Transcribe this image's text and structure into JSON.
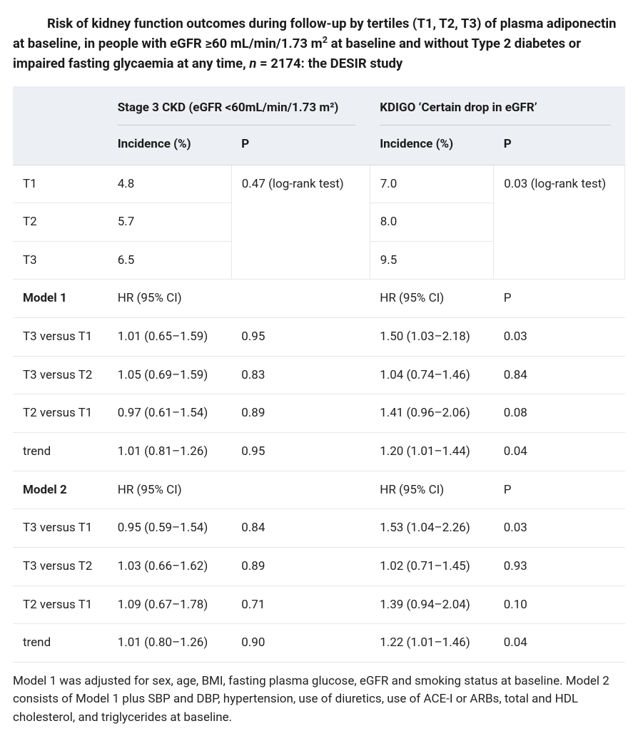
{
  "title_html": "Risk of kidney function outcomes during follow-up by tertiles (T1, T2, T3) of plasma adiponectin at baseline, in people with eGFR ≥60 mL/min/1.73 m<sup>2</sup> at baseline and without Type 2 diabetes or impaired fasting glycaemia at any time, <em>n</em> = 2174: the DESIR study",
  "header": {
    "group1": "Stage 3 CKD (eGFR <60mL/min/1.73 m²)",
    "group2": "KDIGO ‘Certain drop in eGFR’",
    "sub_incidence": "Incidence (%)",
    "sub_p": "P"
  },
  "incidence": {
    "rows": [
      "T1",
      "T2",
      "T3"
    ],
    "ckd": [
      "4.8",
      "5.7",
      "6.5"
    ],
    "ckd_p": "0.47 (log-rank test)",
    "kdigo": [
      "7.0",
      "8.0",
      "9.5"
    ],
    "kdigo_p": "0.03 (log-rank test)"
  },
  "model1": {
    "label": "Model 1",
    "hr_label": "HR (95% CI)",
    "p_label": "P",
    "rows": [
      {
        "name": "T3 versus T1",
        "ckd_hr": "1.01 (0.65–1.59)",
        "ckd_p": "0.95",
        "kd_hr": "1.50 (1.03–2.18)",
        "kd_p": "0.03"
      },
      {
        "name": "T3 versus T2",
        "ckd_hr": "1.05 (0.69–1.59)",
        "ckd_p": "0.83",
        "kd_hr": "1.04 (0.74–1.46)",
        "kd_p": "0.84"
      },
      {
        "name": "T2 versus T1",
        "ckd_hr": "0.97 (0.61–1.54)",
        "ckd_p": "0.89",
        "kd_hr": "1.41 (0.96–2.06)",
        "kd_p": "0.08"
      },
      {
        "name": "trend",
        "ckd_hr": "1.01 (0.81–1.26)",
        "ckd_p": "0.95",
        "kd_hr": "1.20 (1.01–1.44)",
        "kd_p": "0.04"
      }
    ]
  },
  "model2": {
    "label": "Model 2",
    "hr_label": "HR (95% CI)",
    "p_label": "P",
    "rows": [
      {
        "name": "T3 versus T1",
        "ckd_hr": "0.95 (0.59–1.54)",
        "ckd_p": "0.84",
        "kd_hr": "1.53 (1.04–2.26)",
        "kd_p": "0.03"
      },
      {
        "name": "T3 versus T2",
        "ckd_hr": "1.03 (0.66–1.62)",
        "ckd_p": "0.89",
        "kd_hr": "1.02 (0.71–1.45)",
        "kd_p": "0.93"
      },
      {
        "name": "T2 versus T1",
        "ckd_hr": "1.09 (0.67–1.78)",
        "ckd_p": "0.71",
        "kd_hr": "1.39 (0.94–2.04)",
        "kd_p": "0.10"
      },
      {
        "name": "trend",
        "ckd_hr": "1.01 (0.80–1.26)",
        "ckd_p": "0.90",
        "kd_hr": "1.22 (1.01–1.46)",
        "kd_p": "0.04"
      }
    ]
  },
  "footnote": "Model 1 was adjusted for sex, age, BMI, fasting plasma glucose, eGFR and smoking status at baseline. Model 2 consists of Model 1 plus SBP and DBP, hypertension, use of diuretics, use of ACE-I or ARBs, total and HDL cholesterol, and triglycerides at baseline."
}
